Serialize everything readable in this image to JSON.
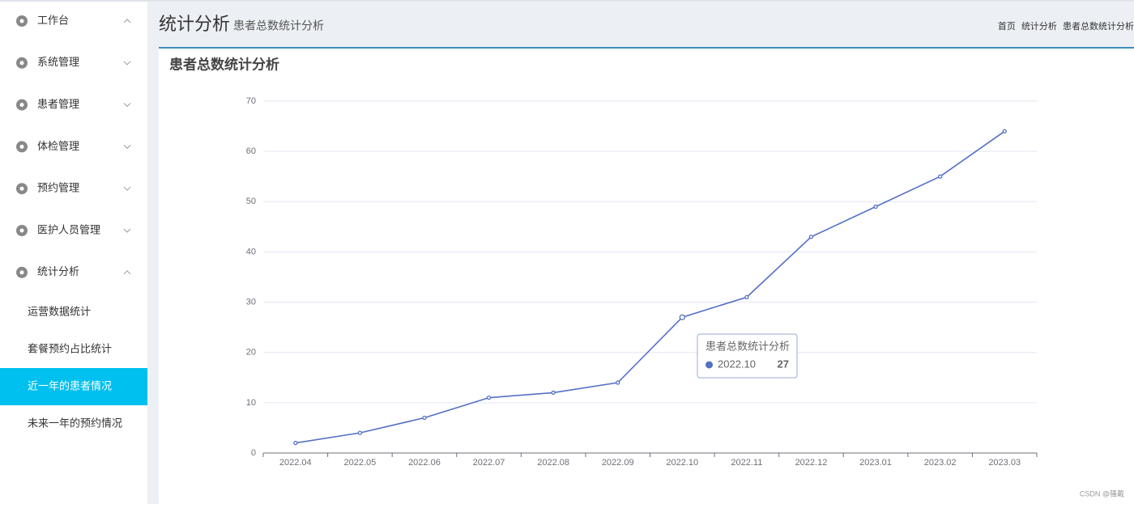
{
  "sidebar": {
    "menu": [
      "工作台",
      "系统管理",
      "患者管理",
      "体检管理",
      "预约管理",
      "医护人员管理",
      "统计分析"
    ],
    "submenu": [
      "运营数据统计",
      "套餐预约占比统计",
      "近一年的患者情况",
      "未来一年的预约情况"
    ]
  },
  "header": {
    "title": "统计分析",
    "subtitle": "患者总数统计分析",
    "breadcrumb": [
      "首页",
      "统计分析",
      "患者总数统计分析"
    ]
  },
  "chart_data": {
    "type": "line",
    "title": "患者总数统计分析",
    "categories": [
      "2022.04",
      "2022.05",
      "2022.06",
      "2022.07",
      "2022.08",
      "2022.09",
      "2022.10",
      "2022.11",
      "2022.12",
      "2023.01",
      "2023.02",
      "2023.03"
    ],
    "series": [
      {
        "name": "患者总数统计分析",
        "color": "#5470c6",
        "values": [
          2,
          4,
          7,
          11,
          12,
          14,
          27,
          31,
          43,
          49,
          55,
          64
        ]
      }
    ],
    "ylim": [
      0,
      70
    ],
    "yticks": [
      0,
      10,
      20,
      30,
      40,
      50,
      60,
      70
    ],
    "grid": true
  },
  "watermark": "CSDN @骚戴"
}
